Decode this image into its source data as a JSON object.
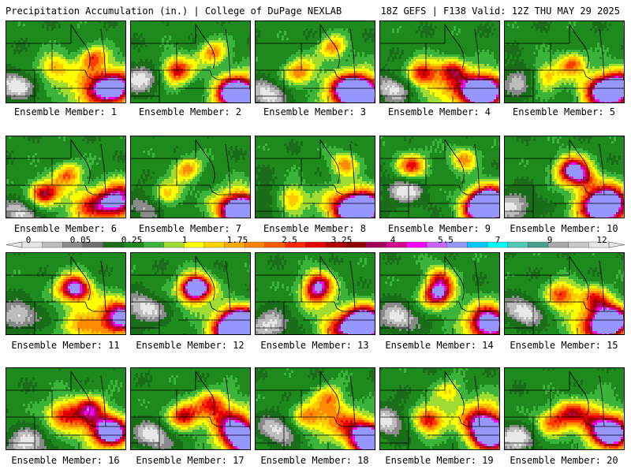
{
  "header": {
    "left": "Precipitation Accumulation (in.) | College of DuPage NEXLAB",
    "right": "18Z GEFS | F138 Valid: 12Z THU MAY 29 2025"
  },
  "members": [
    {
      "label": "Ensemble Member: 1"
    },
    {
      "label": "Ensemble Member: 2"
    },
    {
      "label": "Ensemble Member: 3"
    },
    {
      "label": "Ensemble Member: 4"
    },
    {
      "label": "Ensemble Member: 5"
    },
    {
      "label": "Ensemble Member: 6"
    },
    {
      "label": "Ensemble Member: 7"
    },
    {
      "label": "Ensemble Member: 8"
    },
    {
      "label": "Ensemble Member: 9"
    },
    {
      "label": "Ensemble Member: 10"
    },
    {
      "label": "Ensemble Member: 11"
    },
    {
      "label": "Ensemble Member: 12"
    },
    {
      "label": "Ensemble Member: 13"
    },
    {
      "label": "Ensemble Member: 14"
    },
    {
      "label": "Ensemble Member: 15"
    },
    {
      "label": "Ensemble Member: 16"
    },
    {
      "label": "Ensemble Member: 17"
    },
    {
      "label": "Ensemble Member: 18"
    },
    {
      "label": "Ensemble Member: 19"
    },
    {
      "label": "Ensemble Member: 20"
    }
  ],
  "colorbar": {
    "tick_labels": [
      "0",
      "0.05",
      "0.25",
      "1",
      "1.75",
      "2.5",
      "3.25",
      "4",
      "5.5",
      "7",
      "9",
      "12"
    ],
    "colors": [
      "#e6e6e6",
      "#bdbdbd",
      "#8c8c8c",
      "#6e6e6e",
      "#1a6e1a",
      "#1e8a1e",
      "#3cb43c",
      "#a0dc32",
      "#ffff00",
      "#ffd200",
      "#ffaa00",
      "#ff8200",
      "#ff5a00",
      "#ff2800",
      "#e60000",
      "#b40000",
      "#8c0000",
      "#a0005a",
      "#d2008c",
      "#ff00ff",
      "#c864ff",
      "#9696ff",
      "#00c8ff",
      "#00ffff",
      "#50c8b4",
      "#46a08c",
      "#aaaaaa",
      "#c8c8c8",
      "#e6e6e6"
    ]
  }
}
